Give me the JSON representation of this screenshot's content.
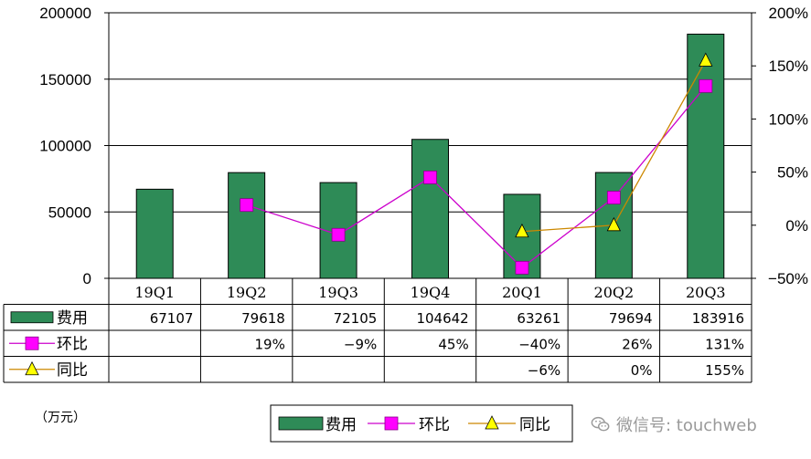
{
  "chart_data": {
    "type": "bar",
    "categories": [
      "19Q1",
      "19Q2",
      "19Q3",
      "19Q4",
      "20Q1",
      "20Q2",
      "20Q3"
    ],
    "series": [
      {
        "name": "费用",
        "type": "bar",
        "axis": "left",
        "values": [
          67107,
          79618,
          72105,
          104642,
          63261,
          79694,
          183916
        ]
      },
      {
        "name": "环比",
        "type": "line",
        "axis": "right",
        "values": [
          null,
          19,
          -9,
          45,
          -40,
          26,
          131
        ]
      },
      {
        "name": "同比",
        "type": "line",
        "axis": "right",
        "values": [
          null,
          null,
          null,
          null,
          -6,
          0,
          155
        ]
      }
    ],
    "table_rows": [
      {
        "label": "费用",
        "cells": [
          "67107",
          "79618",
          "72105",
          "104642",
          "63261",
          "79694",
          "183916"
        ]
      },
      {
        "label": "环比",
        "cells": [
          "",
          "19%",
          "−9%",
          "45%",
          "−40%",
          "26%",
          "131%"
        ]
      },
      {
        "label": "同比",
        "cells": [
          "",
          "",
          "",
          "",
          "−6%",
          "0%",
          "155%"
        ]
      }
    ],
    "left_axis": {
      "ylim": [
        0,
        200000
      ],
      "ticks": [
        0,
        50000,
        100000,
        150000,
        200000
      ],
      "tick_labels": [
        "0",
        "50000",
        "100000",
        "150000",
        "200000"
      ]
    },
    "right_axis": {
      "ylim": [
        -50,
        200
      ],
      "ticks": [
        -50,
        0,
        50,
        100,
        150,
        200
      ],
      "tick_labels": [
        "−50%",
        "0%",
        "50%",
        "100%",
        "150%",
        "200%"
      ]
    },
    "unit_label": "（万元）",
    "legend": [
      "费用",
      "环比",
      "同比"
    ],
    "legend_position": "bottom-center"
  },
  "colors": {
    "bar": "#2e8b57",
    "qoq_line": "#cc00cc",
    "qoq_marker": "#ff00ff",
    "yoy_line": "#cc8800",
    "yoy_marker": "#ffff00"
  },
  "watermark": {
    "icon": "wechat-icon",
    "text": "微信号: touchweb"
  }
}
